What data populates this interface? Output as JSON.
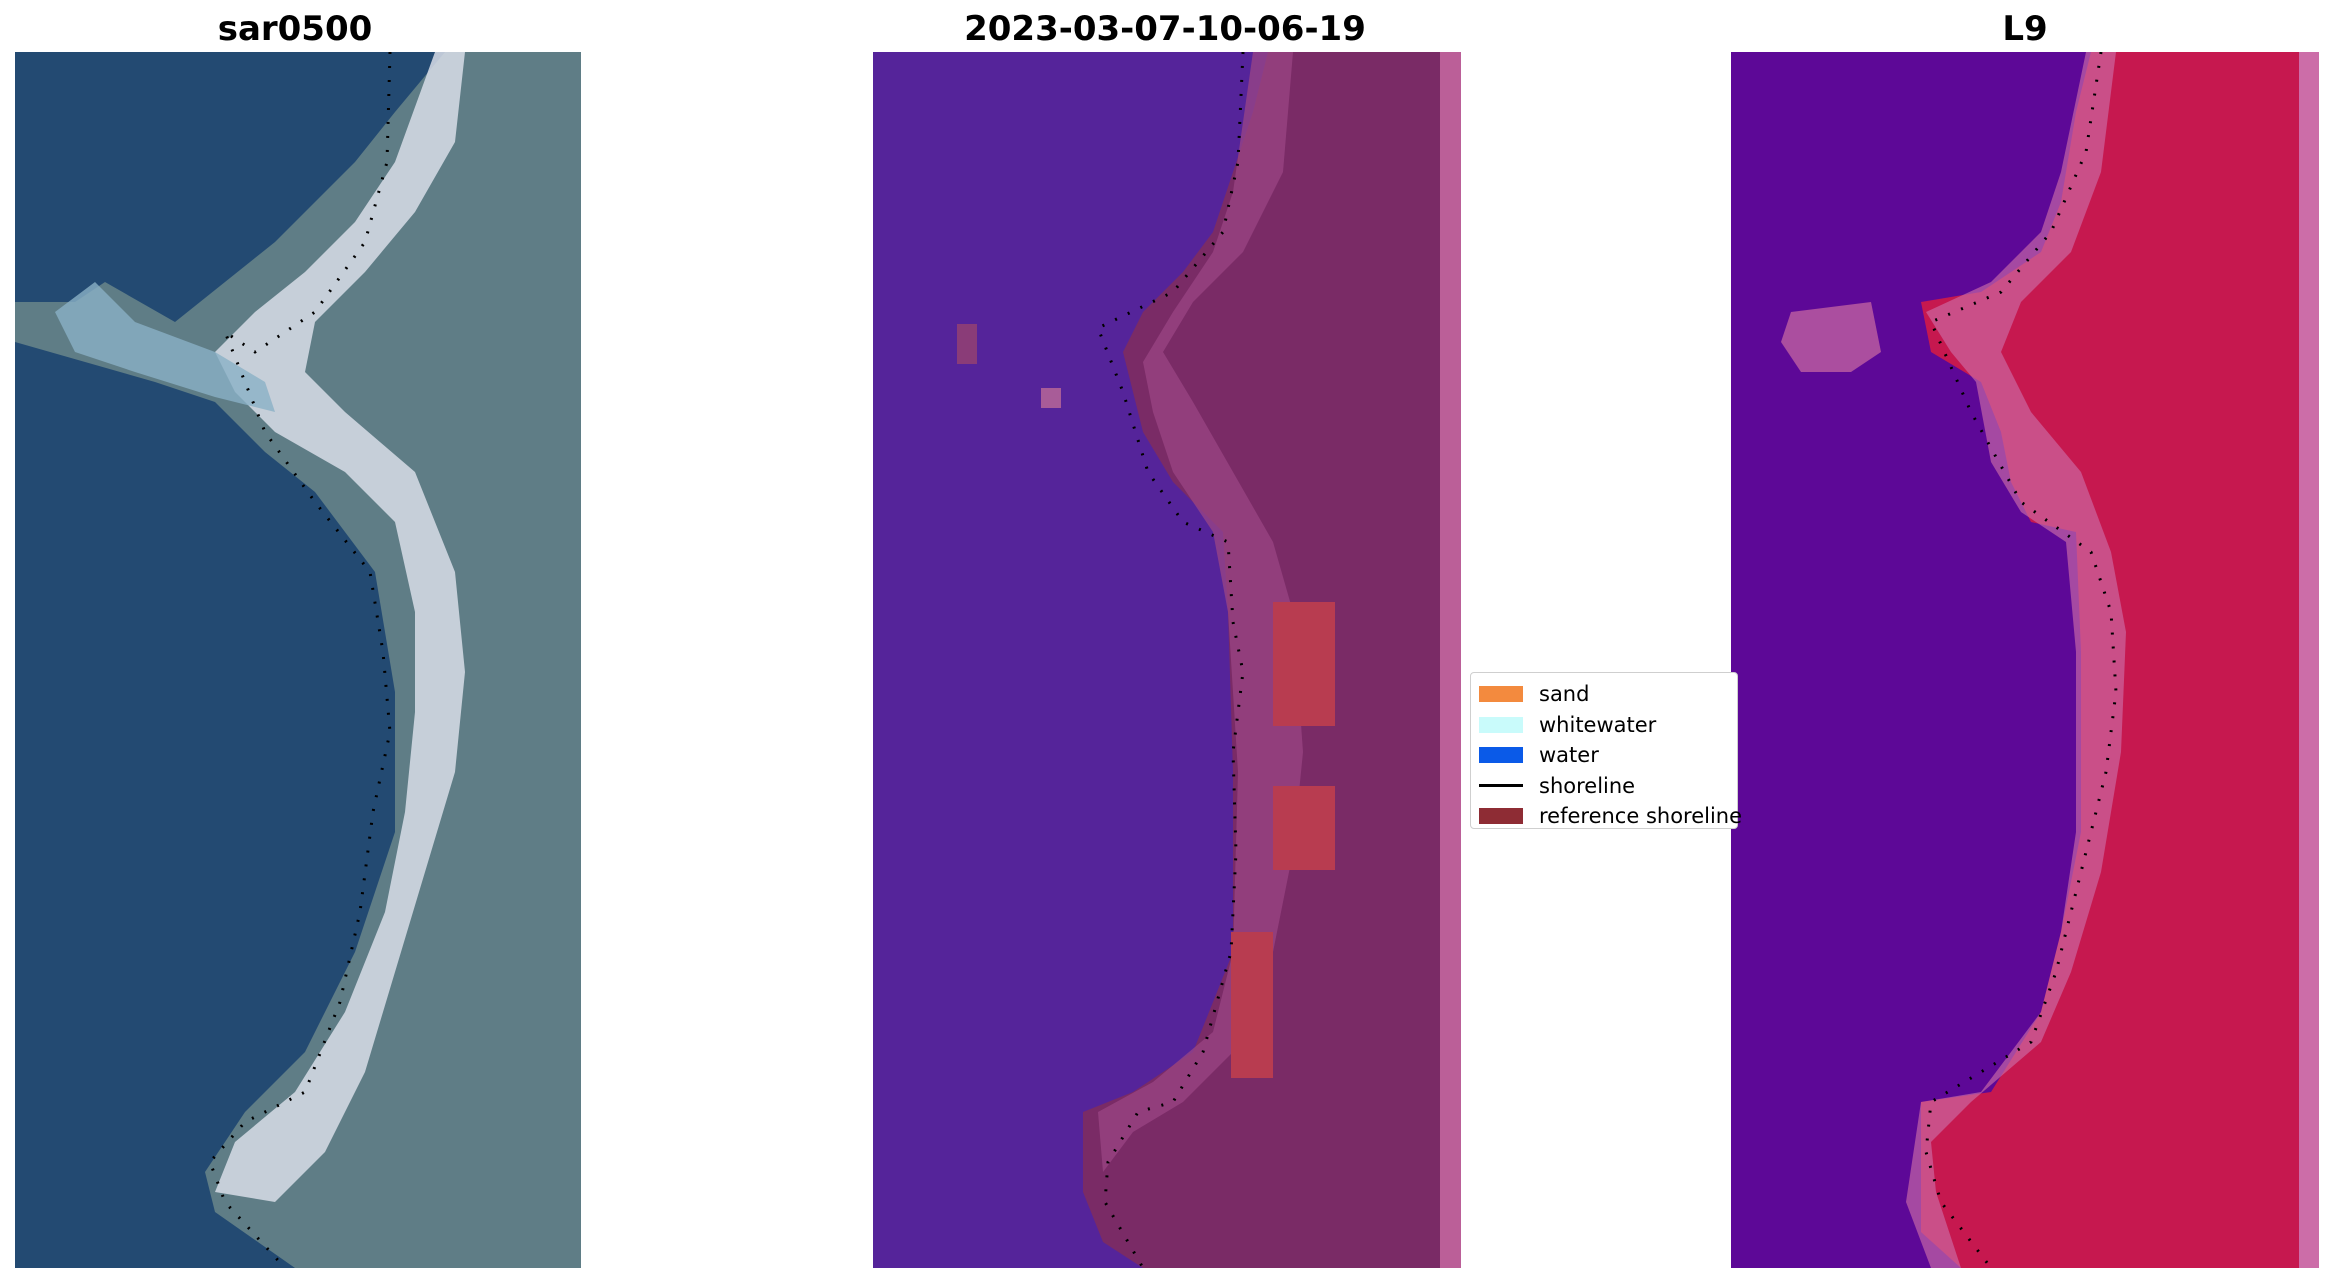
{
  "panels": [
    {
      "id": "rgb",
      "title": "sar0500"
    },
    {
      "id": "classification",
      "title": "2023-03-07-10-06-19"
    },
    {
      "id": "index",
      "title": "L9"
    }
  ],
  "legend": {
    "items": [
      {
        "label": "sand",
        "kind": "patch",
        "color": "#f38a3e"
      },
      {
        "label": "whitewater",
        "kind": "patch",
        "color": "#c9fbfb"
      },
      {
        "label": "water",
        "kind": "patch",
        "color": "#0a5ae8"
      },
      {
        "label": "shoreline",
        "kind": "line",
        "color": "#000000"
      },
      {
        "label": "reference shoreline",
        "kind": "patch",
        "color": "#8e2c34"
      }
    ]
  },
  "colors": {
    "rgb_water": "#234a72",
    "rgb_land": "#5f7d86",
    "rgb_sand": "#d8dde8",
    "class_water": "#55249a",
    "class_land": "#7a2b66",
    "class_land_light": "#9b4684",
    "class_red": "#b83c50",
    "class_edge": "#bb5f98",
    "index_water": "#5d0897",
    "index_land": "#c6184f",
    "index_edge": "#cc6da8"
  }
}
